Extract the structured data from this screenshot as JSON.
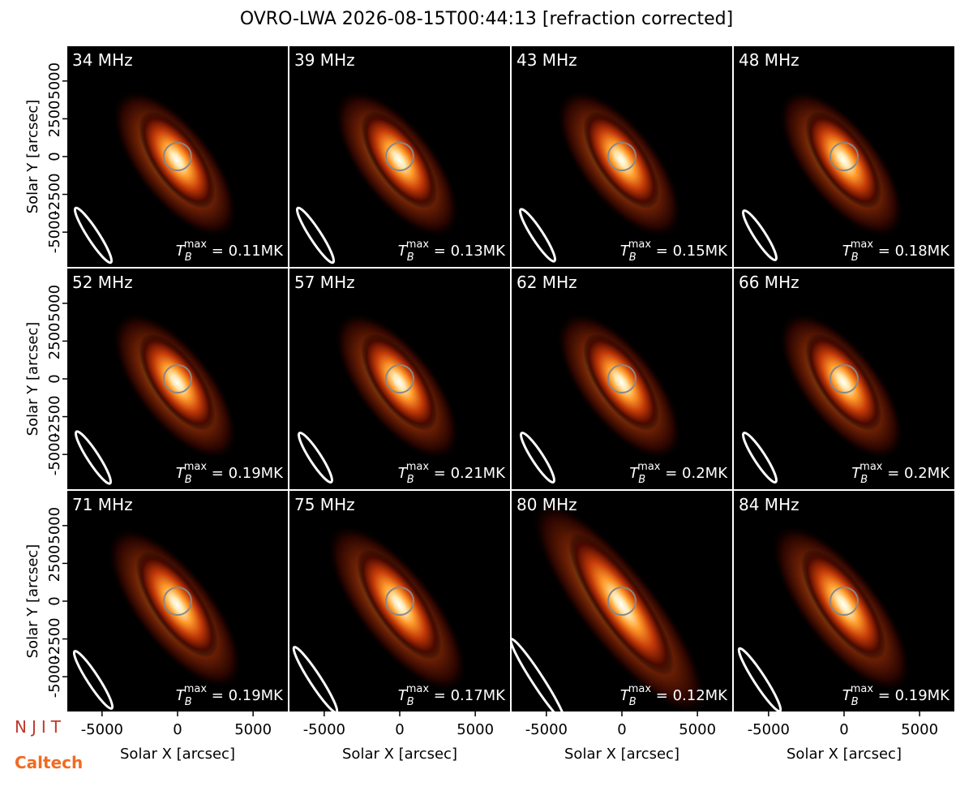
{
  "chart_data": {
    "type": "image-grid",
    "title": "OVRO-LWA 2026-08-15T00:44:13 [refraction corrected]",
    "x_label": "Solar X [arcsec]",
    "y_label": "Solar Y [arcsec]",
    "xlim": [
      -7300,
      7300
    ],
    "ylim": [
      -7300,
      7300
    ],
    "xticks": [
      -5000,
      0,
      5000
    ],
    "yticks": [
      -5000,
      -2500,
      0,
      2500,
      5000
    ],
    "tb_symbol": "T",
    "tb_sub": "B",
    "tb_sup": "max",
    "tb_eq": " = ",
    "panels": [
      {
        "freq": "34 MHz",
        "tb_max": "0.11MK"
      },
      {
        "freq": "39 MHz",
        "tb_max": "0.13MK"
      },
      {
        "freq": "43 MHz",
        "tb_max": "0.15MK"
      },
      {
        "freq": "48 MHz",
        "tb_max": "0.18MK"
      },
      {
        "freq": "52 MHz",
        "tb_max": "0.19MK"
      },
      {
        "freq": "57 MHz",
        "tb_max": "0.21MK"
      },
      {
        "freq": "62 MHz",
        "tb_max": "0.2MK"
      },
      {
        "freq": "66 MHz",
        "tb_max": "0.2MK"
      },
      {
        "freq": "71 MHz",
        "tb_max": "0.19MK"
      },
      {
        "freq": "75 MHz",
        "tb_max": "0.17MK"
      },
      {
        "freq": "80 MHz",
        "tb_max": "0.12MK"
      },
      {
        "freq": "84 MHz",
        "tb_max": "0.19MK"
      }
    ],
    "logos": [
      "NJIT",
      "Caltech"
    ]
  }
}
